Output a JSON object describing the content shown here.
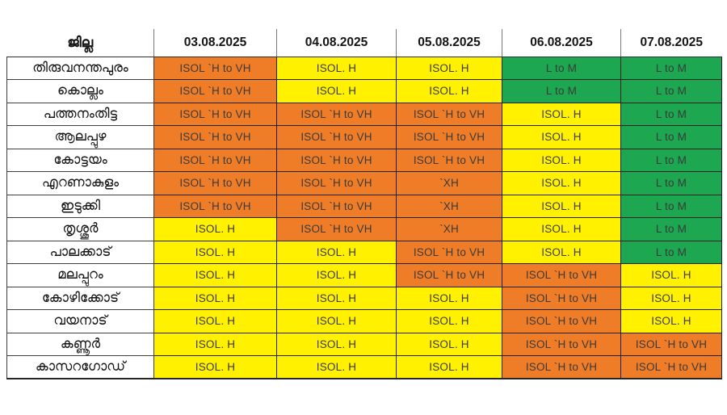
{
  "colors": {
    "orange": "#EF7D27",
    "yellow": "#FFF100",
    "green": "#1CA750"
  },
  "chart_data": {
    "type": "table",
    "title": "",
    "columns": [
      "ജില്ല",
      "03.08.2025",
      "04.08.2025",
      "05.08.2025",
      "06.08.2025",
      "07.08.2025"
    ],
    "cell_value_levels": [
      "L to M",
      "ISOL. H",
      "ISOL `H to VH",
      "`XH"
    ],
    "rows": [
      {
        "district": "തിരുവനന്തപുരം",
        "cells": [
          {
            "text": "ISOL `H to VH",
            "color": "orange"
          },
          {
            "text": "ISOL. H",
            "color": "yellow"
          },
          {
            "text": "ISOL. H",
            "color": "yellow"
          },
          {
            "text": "L to M",
            "color": "green"
          },
          {
            "text": "L to M",
            "color": "green"
          }
        ]
      },
      {
        "district": "കൊല്ലം",
        "cells": [
          {
            "text": "ISOL `H to VH",
            "color": "orange"
          },
          {
            "text": "ISOL. H",
            "color": "yellow"
          },
          {
            "text": "ISOL. H",
            "color": "yellow"
          },
          {
            "text": "L to M",
            "color": "green"
          },
          {
            "text": "L to M",
            "color": "green"
          }
        ]
      },
      {
        "district": "പത്തനംതിട്ട",
        "cells": [
          {
            "text": "ISOL `H to VH",
            "color": "orange"
          },
          {
            "text": "ISOL `H to VH",
            "color": "orange"
          },
          {
            "text": "ISOL `H to VH",
            "color": "orange"
          },
          {
            "text": "ISOL. H",
            "color": "yellow"
          },
          {
            "text": "L to M",
            "color": "green"
          }
        ]
      },
      {
        "district": "ആലപ്പുഴ",
        "cells": [
          {
            "text": "ISOL `H to VH",
            "color": "orange"
          },
          {
            "text": "ISOL `H to VH",
            "color": "orange"
          },
          {
            "text": "ISOL `H to VH",
            "color": "orange"
          },
          {
            "text": "ISOL. H",
            "color": "yellow"
          },
          {
            "text": "L to M",
            "color": "green"
          }
        ]
      },
      {
        "district": "കോട്ടയം",
        "cells": [
          {
            "text": "ISOL `H to VH",
            "color": "orange"
          },
          {
            "text": "ISOL `H to VH",
            "color": "orange"
          },
          {
            "text": "ISOL `H to VH",
            "color": "orange"
          },
          {
            "text": "ISOL. H",
            "color": "yellow"
          },
          {
            "text": "L to M",
            "color": "green"
          }
        ]
      },
      {
        "district": "എറണാകുളം",
        "cells": [
          {
            "text": "ISOL `H to VH",
            "color": "orange"
          },
          {
            "text": "ISOL `H to VH",
            "color": "orange"
          },
          {
            "text": "`XH",
            "color": "orange"
          },
          {
            "text": "ISOL. H",
            "color": "yellow"
          },
          {
            "text": "L to M",
            "color": "green"
          }
        ]
      },
      {
        "district": "ഇടുക്കി",
        "cells": [
          {
            "text": "ISOL `H to VH",
            "color": "orange"
          },
          {
            "text": "ISOL `H to VH",
            "color": "orange"
          },
          {
            "text": "`XH",
            "color": "orange"
          },
          {
            "text": "ISOL. H",
            "color": "yellow"
          },
          {
            "text": "L to M",
            "color": "green"
          }
        ]
      },
      {
        "district": "തൃശ്ശൂർ",
        "cells": [
          {
            "text": "ISOL. H",
            "color": "yellow"
          },
          {
            "text": "ISOL `H to VH",
            "color": "orange"
          },
          {
            "text": "`XH",
            "color": "orange"
          },
          {
            "text": "ISOL. H",
            "color": "yellow"
          },
          {
            "text": "L to M",
            "color": "green"
          }
        ]
      },
      {
        "district": "പാലക്കാട്",
        "cells": [
          {
            "text": "ISOL. H",
            "color": "yellow"
          },
          {
            "text": "ISOL. H",
            "color": "yellow"
          },
          {
            "text": "ISOL `H to VH",
            "color": "orange"
          },
          {
            "text": "ISOL. H",
            "color": "yellow"
          },
          {
            "text": "L to M",
            "color": "green"
          }
        ]
      },
      {
        "district": "മലപ്പുറം",
        "cells": [
          {
            "text": "ISOL. H",
            "color": "yellow"
          },
          {
            "text": "ISOL. H",
            "color": "yellow"
          },
          {
            "text": "ISOL `H to VH",
            "color": "orange"
          },
          {
            "text": "ISOL `H to VH",
            "color": "orange"
          },
          {
            "text": "ISOL. H",
            "color": "yellow"
          }
        ]
      },
      {
        "district": "കോഴിക്കോട്",
        "cells": [
          {
            "text": "ISOL. H",
            "color": "yellow"
          },
          {
            "text": "ISOL. H",
            "color": "yellow"
          },
          {
            "text": "ISOL. H",
            "color": "yellow"
          },
          {
            "text": "ISOL `H to VH",
            "color": "orange"
          },
          {
            "text": "ISOL. H",
            "color": "yellow"
          }
        ]
      },
      {
        "district": "വയനാട്",
        "cells": [
          {
            "text": "ISOL. H",
            "color": "yellow"
          },
          {
            "text": "ISOL. H",
            "color": "yellow"
          },
          {
            "text": "ISOL. H",
            "color": "yellow"
          },
          {
            "text": "ISOL `H to VH",
            "color": "orange"
          },
          {
            "text": "ISOL. H",
            "color": "yellow"
          }
        ]
      },
      {
        "district": "കണ്ണൂർ",
        "cells": [
          {
            "text": "ISOL. H",
            "color": "yellow"
          },
          {
            "text": "ISOL. H",
            "color": "yellow"
          },
          {
            "text": "ISOL. H",
            "color": "yellow"
          },
          {
            "text": "ISOL `H to VH",
            "color": "orange"
          },
          {
            "text": "ISOL `H to VH",
            "color": "orange"
          }
        ]
      },
      {
        "district": "കാസറഗോഡ്",
        "cells": [
          {
            "text": "ISOL. H",
            "color": "yellow"
          },
          {
            "text": "ISOL. H",
            "color": "yellow"
          },
          {
            "text": "ISOL. H",
            "color": "yellow"
          },
          {
            "text": "ISOL `H to VH",
            "color": "orange"
          },
          {
            "text": "ISOL `H to VH",
            "color": "orange"
          }
        ]
      }
    ]
  }
}
